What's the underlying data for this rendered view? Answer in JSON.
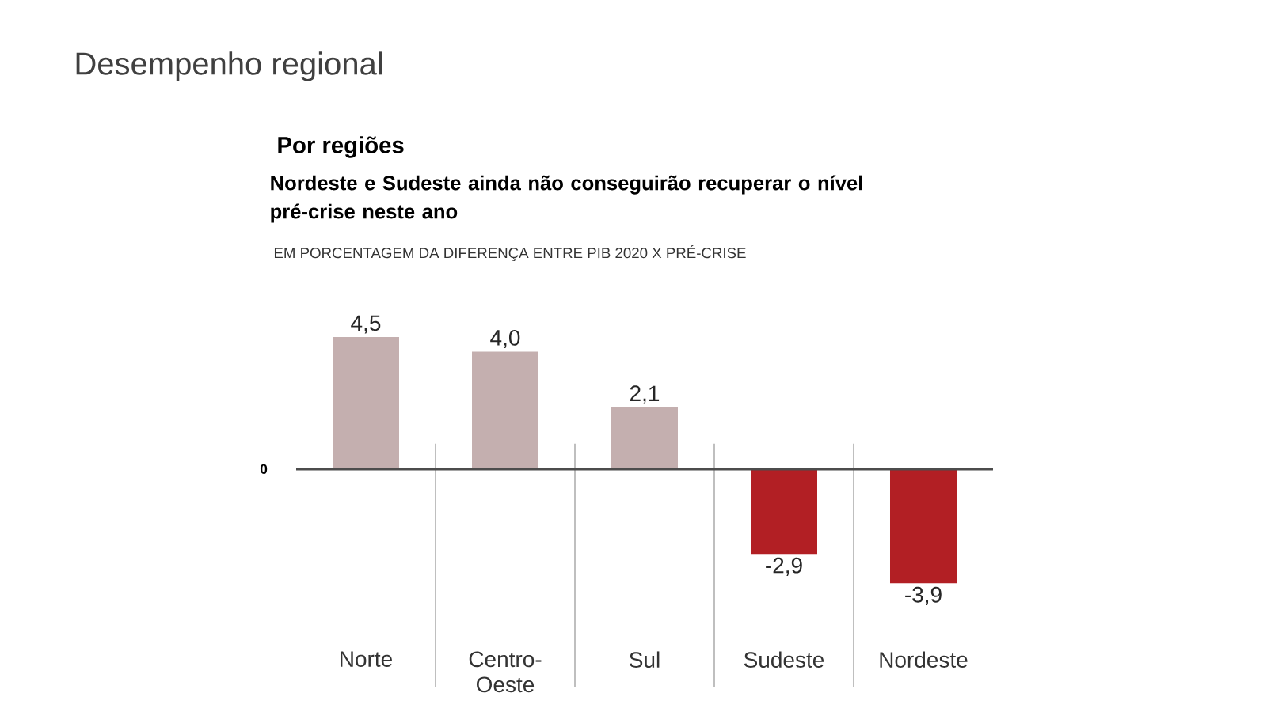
{
  "chart_data": {
    "type": "bar",
    "title": "Por regiões",
    "subtitle": "Nordeste e Sudeste ainda não conseguirão recuperar o nível pré-crise neste ano",
    "annotations": [
      "Desempenho regional",
      "EM PORCENTAGEM DA DIFERENÇA ENTRE PIB 2020 X PRÉ-CRISE",
      "0"
    ],
    "categories": [
      "Norte",
      "Centro-Oeste",
      "Sul",
      "Sudeste",
      "Nordeste"
    ],
    "values": [
      4.5,
      4.0,
      2.1,
      -2.9,
      -3.9
    ],
    "colors": [
      "#c4afaf",
      "#c4afaf",
      "#c4afaf",
      "#b21f24",
      "#b21f24"
    ],
    "value_labels": [
      "4,5",
      "4,0",
      "2,1",
      "-2,9",
      "-3,9"
    ]
  }
}
